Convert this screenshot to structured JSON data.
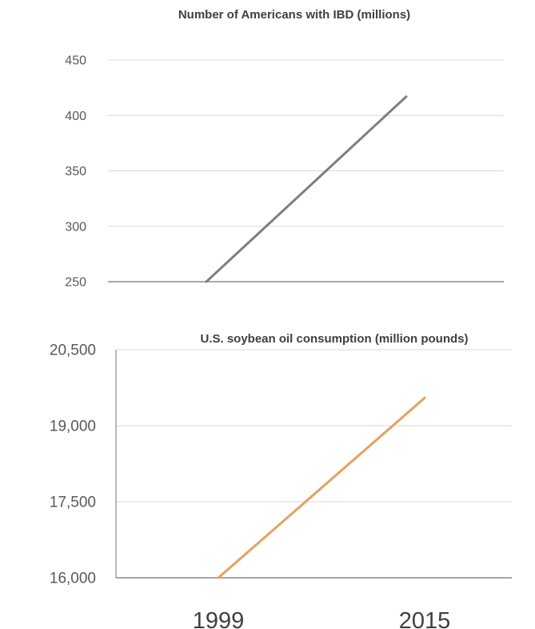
{
  "chart_data": [
    {
      "type": "line",
      "title": "Number of Americans with IBD (millions)",
      "xlabel": "",
      "ylabel": "",
      "ylim": [
        250,
        450
      ],
      "yticks": [
        "250",
        "300",
        "350",
        "400",
        "450"
      ],
      "grid": true,
      "x": [
        1999,
        2015
      ],
      "series": [
        {
          "values": [
            250,
            417
          ],
          "color": "#7f7f7f"
        }
      ]
    },
    {
      "type": "line",
      "title": "U.S. soybean oil consumption (million pounds)",
      "xlabel": "",
      "ylabel": "",
      "ylim": [
        16000,
        20500
      ],
      "yticks": [
        "16,000",
        "17,500",
        "19,000",
        "20,500"
      ],
      "grid": true,
      "x": [
        1999,
        2015
      ],
      "xticks": [
        "1999",
        "2015"
      ],
      "series": [
        {
          "values": [
            16000,
            19550
          ],
          "color": "#e6a15e"
        }
      ]
    }
  ]
}
